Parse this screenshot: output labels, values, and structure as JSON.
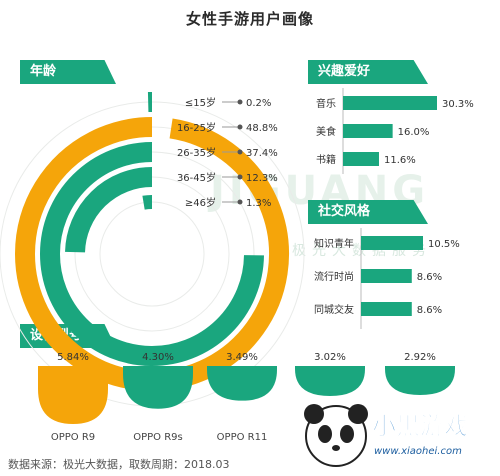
{
  "title": "女性手游用户画像",
  "sections": {
    "age": "年龄",
    "interest": "兴趣爱好",
    "social": "社交风格",
    "device": "设备型号"
  },
  "colors": {
    "green": "#1aa67e",
    "orange": "#f5a50a",
    "ring_bg": "#e9ebe9"
  },
  "chart_data": [
    {
      "type": "pie",
      "subtype": "radial-bar",
      "title": "年龄",
      "categories": [
        "≤15岁",
        "16-25岁",
        "26-35岁",
        "36-45岁",
        "≥46岁"
      ],
      "values": [
        0.2,
        48.8,
        37.4,
        12.3,
        1.3
      ],
      "value_labels": [
        "0.2%",
        "48.8%",
        "37.4%",
        "12.3%",
        "1.3%"
      ],
      "highlight": "16-25岁"
    },
    {
      "type": "bar",
      "orientation": "horizontal",
      "title": "兴趣爱好",
      "categories": [
        "音乐",
        "美食",
        "书籍"
      ],
      "values": [
        30.3,
        16.0,
        11.6
      ],
      "value_labels": [
        "30.3%",
        "16.0%",
        "11.6%"
      ]
    },
    {
      "type": "bar",
      "orientation": "horizontal",
      "title": "社交风格",
      "categories": [
        "知识青年",
        "流行时尚",
        "同城交友"
      ],
      "values": [
        10.5,
        8.6,
        8.6
      ],
      "value_labels": [
        "10.5%",
        "8.6%",
        "8.6%"
      ]
    },
    {
      "type": "bar",
      "title": "设备型号",
      "categories": [
        "OPPO R9",
        "OPPO R9s",
        "OPPO R11",
        "",
        ""
      ],
      "values": [
        5.84,
        4.3,
        3.49,
        3.02,
        2.92
      ],
      "value_labels": [
        "5.84%",
        "4.30%",
        "3.49%",
        "3.02%",
        "2.92%"
      ],
      "highlight": "OPPO R9"
    }
  ],
  "watermark": "JIGUANG",
  "watermark_sub": "极光大数据服务",
  "footer": "数据来源：极光大数据，取数周期：2018.03",
  "logo": {
    "name": "小黑游戏",
    "url_text": "www.xiaohei.com"
  }
}
